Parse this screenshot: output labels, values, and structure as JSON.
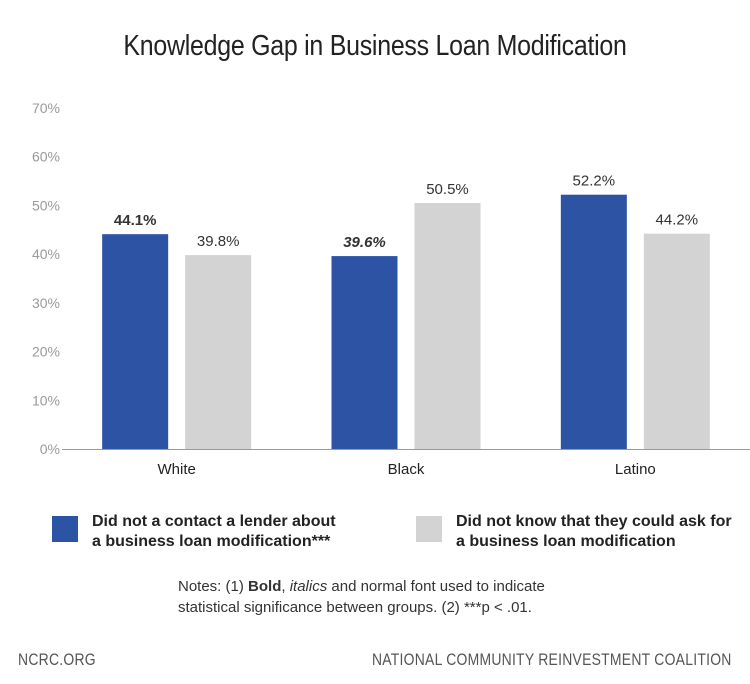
{
  "title": "Knowledge Gap in Business Loan Modification",
  "chart_data": {
    "type": "bar",
    "categories": [
      "White",
      "Black",
      "Latino"
    ],
    "series": [
      {
        "name": "Did not a contact a lender about a business loan modification***",
        "values": [
          44.1,
          39.6,
          52.2
        ],
        "labels": [
          "44.1%",
          "39.6%",
          "52.2%"
        ],
        "label_styles": [
          "bold",
          "bold-italic",
          "normal"
        ],
        "color": "#2c53a4"
      },
      {
        "name": "Did not know that they could ask for a business loan modification",
        "values": [
          39.8,
          50.5,
          44.2
        ],
        "labels": [
          "39.8%",
          "50.5%",
          "44.2%"
        ],
        "label_styles": [
          "normal",
          "normal",
          "normal"
        ],
        "color": "#d3d3d3"
      }
    ],
    "ylim": [
      0,
      70
    ],
    "yticks": [
      "0%",
      "10%",
      "20%",
      "30%",
      "40%",
      "50%",
      "60%",
      "70%"
    ],
    "grid": false,
    "legend_position": "bottom"
  },
  "legend": {
    "item1": {
      "line1": "Did not a contact a lender about",
      "line2": "a business loan modification***"
    },
    "item2": {
      "line1": "Did not know that they could ask for",
      "line2": "a business loan modification"
    }
  },
  "notes": {
    "prefix": "Notes: (1) ",
    "bold": "Bold",
    "sep1": ", ",
    "italic": "italics",
    "rest1": " and normal font used to indicate",
    "line2": "statistical significance between groups.  (2) ***p < .01."
  },
  "footer": {
    "left": "NCRC.ORG",
    "right": "NATIONAL COMMUNITY REINVESTMENT COALITION"
  }
}
